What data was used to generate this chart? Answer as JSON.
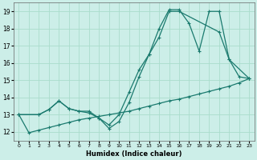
{
  "bg_color": "#cceee8",
  "grid_color": "#aaddcc",
  "line_color": "#1a7a6e",
  "xlabel": "Humidex (Indice chaleur)",
  "xlim": [
    -0.5,
    23.5
  ],
  "ylim": [
    11.5,
    19.5
  ],
  "yticks": [
    12,
    13,
    14,
    15,
    16,
    17,
    18,
    19
  ],
  "xticks": [
    0,
    1,
    2,
    3,
    4,
    5,
    6,
    7,
    8,
    9,
    10,
    11,
    12,
    13,
    14,
    15,
    16,
    17,
    18,
    19,
    20,
    21,
    22,
    23
  ],
  "line1_x": [
    0,
    1,
    2,
    3,
    4,
    5,
    6,
    7,
    8,
    9,
    10,
    11,
    12,
    13,
    14,
    15,
    16,
    17,
    18,
    19,
    20,
    21,
    22,
    23
  ],
  "line1_y": [
    13.0,
    11.95,
    12.1,
    12.25,
    12.4,
    12.55,
    12.7,
    12.8,
    12.9,
    13.0,
    13.1,
    13.2,
    13.35,
    13.5,
    13.65,
    13.8,
    13.9,
    14.05,
    14.2,
    14.35,
    14.5,
    14.65,
    14.85,
    15.1
  ],
  "line2_x": [
    0,
    2,
    3,
    4,
    5,
    6,
    7,
    8,
    9,
    10,
    11,
    12,
    13,
    14,
    15,
    16,
    20,
    21,
    22,
    23
  ],
  "line2_y": [
    13.0,
    13.0,
    13.3,
    13.8,
    13.35,
    13.2,
    13.2,
    12.8,
    12.4,
    13.0,
    14.3,
    15.6,
    16.5,
    17.5,
    19.0,
    19.0,
    17.8,
    16.2,
    15.2,
    15.1
  ],
  "line3_x": [
    0,
    2,
    3,
    4,
    5,
    6,
    7,
    8,
    9,
    10,
    11,
    12,
    13,
    14,
    15,
    16,
    17,
    18,
    19,
    20,
    21,
    23
  ],
  "line3_y": [
    13.0,
    13.0,
    13.3,
    13.8,
    13.35,
    13.2,
    13.1,
    12.8,
    12.2,
    12.6,
    13.7,
    15.2,
    16.5,
    18.0,
    19.1,
    19.1,
    18.3,
    16.7,
    19.0,
    19.0,
    16.2,
    15.1
  ]
}
